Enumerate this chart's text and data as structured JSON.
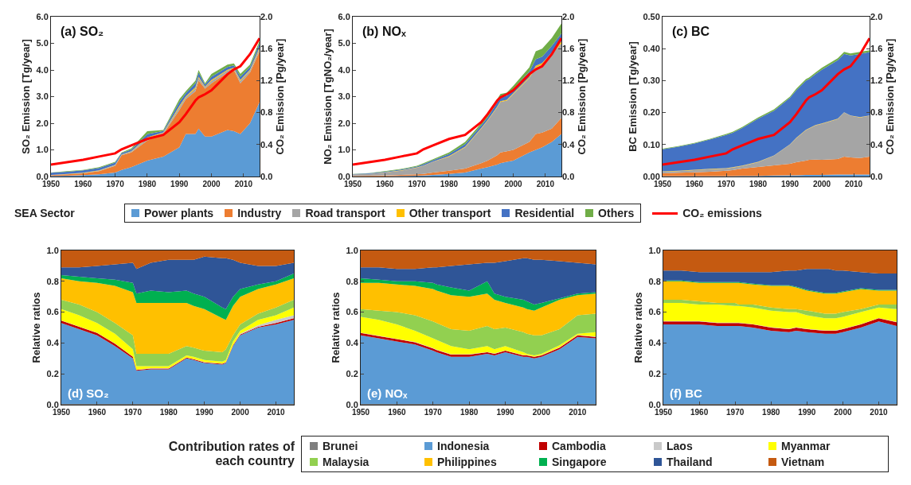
{
  "chart_data": [
    {
      "type": "area",
      "stacked": true,
      "title": "(a) SO₂",
      "ylabel": "SO₂ Emission [Tg/year]",
      "y2label": "CO₂ Emission [Pg/year]",
      "legend": "bottom",
      "legend_title": "SEA Sector",
      "x": [
        1950,
        1955,
        1960,
        1965,
        1970,
        1972,
        1975,
        1980,
        1985,
        1990,
        1992,
        1995,
        1996,
        1998,
        2000,
        2005,
        2007,
        2009,
        2012,
        2015
      ],
      "xlim": [
        1950,
        2015
      ],
      "xticks": [
        1950,
        1960,
        1970,
        1980,
        1990,
        2000,
        2010
      ],
      "ylim": [
        0,
        6
      ],
      "yticks": [
        {
          "value": 0,
          "label": "0.0"
        },
        {
          "value": 1,
          "label": "1.0"
        },
        {
          "value": 2,
          "label": "2.0"
        },
        {
          "value": 3,
          "label": "3.0"
        },
        {
          "value": 4,
          "label": "4.0"
        },
        {
          "value": 5,
          "label": "5.0"
        },
        {
          "value": 6,
          "label": "6.0"
        }
      ],
      "y2lim": [
        0,
        2
      ],
      "y2ticks": [
        {
          "value": 0,
          "label": "0.0"
        },
        {
          "value": 0.4,
          "label": "0.4"
        },
        {
          "value": 0.8,
          "label": "0.8"
        },
        {
          "value": 1.2,
          "label": "1.2"
        },
        {
          "value": 1.6,
          "label": "1.6"
        },
        {
          "value": 2,
          "label": "2.0"
        }
      ],
      "series": [
        {
          "name": "Power plants",
          "color": "#5b9bd5",
          "values": [
            0.02,
            0.03,
            0.05,
            0.08,
            0.15,
            0.25,
            0.35,
            0.6,
            0.75,
            1.1,
            1.6,
            1.6,
            1.8,
            1.5,
            1.5,
            1.75,
            1.7,
            1.6,
            2.0,
            2.8
          ]
        },
        {
          "name": "Industry",
          "color": "#ed7d31",
          "values": [
            0.03,
            0.05,
            0.07,
            0.12,
            0.25,
            0.55,
            0.55,
            0.75,
            0.85,
            1.4,
            1.3,
            1.6,
            1.8,
            1.8,
            2.0,
            2.15,
            2.3,
            1.9,
            1.9,
            1.9
          ]
        },
        {
          "name": "Road transport",
          "color": "#a5a5a5",
          "values": [
            0.01,
            0.01,
            0.01,
            0.02,
            0.03,
            0.02,
            0.03,
            0.08,
            0.04,
            0.1,
            0.08,
            0.1,
            0.1,
            0.05,
            0.09,
            0.08,
            0.06,
            0.09,
            0.08,
            0.1
          ]
        },
        {
          "name": "Other transport",
          "color": "#ffc000",
          "values": [
            0,
            0.01,
            0.01,
            0.01,
            0.01,
            0.01,
            0.02,
            0.04,
            0.02,
            0.05,
            0.03,
            0.05,
            0.05,
            0.02,
            0.04,
            0.03,
            0.03,
            0.04,
            0.03,
            0.05
          ]
        },
        {
          "name": "Residential",
          "color": "#4472c4",
          "values": [
            0.08,
            0.08,
            0.09,
            0.09,
            0.08,
            0.05,
            0.06,
            0.12,
            0.05,
            0.15,
            0.12,
            0.15,
            0.15,
            0.08,
            0.12,
            0.1,
            0.08,
            0.12,
            0.1,
            0.15
          ]
        },
        {
          "name": "Others",
          "color": "#70ad47",
          "values": [
            0.01,
            0.02,
            0.02,
            0.03,
            0.03,
            0.02,
            0.04,
            0.11,
            0.04,
            0.1,
            0.07,
            0.1,
            0.1,
            0.05,
            0.1,
            0.09,
            0.08,
            0.1,
            0.09,
            0.1
          ]
        },
        {
          "name": "CO₂ emissions",
          "type": "line",
          "axis": "y2",
          "color": "#ff0000",
          "values": [
            0.15,
            0.18,
            0.21,
            0.25,
            0.29,
            0.34,
            0.39,
            0.47,
            0.52,
            0.68,
            0.78,
            0.95,
            0.99,
            1.03,
            1.08,
            1.28,
            1.34,
            1.38,
            1.53,
            1.73
          ]
        }
      ]
    },
    {
      "type": "area",
      "stacked": true,
      "title": "(b) NOₓ",
      "ylabel": "NO₂ Emission [TgNO₂/year]",
      "y2label": "CO₂ Emission [Pg/year]",
      "x": [
        1950,
        1955,
        1960,
        1965,
        1970,
        1972,
        1975,
        1980,
        1985,
        1990,
        1992,
        1995,
        1996,
        1998,
        2000,
        2005,
        2007,
        2009,
        2012,
        2015
      ],
      "xlim": [
        1950,
        2015
      ],
      "xticks": [
        1950,
        1960,
        1970,
        1980,
        1990,
        2000,
        2010
      ],
      "ylim": [
        0,
        6
      ],
      "yticks": [
        {
          "value": 0,
          "label": "0.0"
        },
        {
          "value": 1,
          "label": "1.0"
        },
        {
          "value": 2,
          "label": "2.0"
        },
        {
          "value": 3,
          "label": "3.0"
        },
        {
          "value": 4,
          "label": "4.0"
        },
        {
          "value": 5,
          "label": "5.0"
        },
        {
          "value": 6,
          "label": "6.0"
        }
      ],
      "y2lim": [
        0,
        2
      ],
      "y2ticks": [
        {
          "value": 0,
          "label": "0.0"
        },
        {
          "value": 0.4,
          "label": "0.4"
        },
        {
          "value": 0.8,
          "label": "0.8"
        },
        {
          "value": 1.2,
          "label": "1.2"
        },
        {
          "value": 1.6,
          "label": "1.6"
        },
        {
          "value": 2,
          "label": "2.0"
        }
      ],
      "series": [
        {
          "color": "#5b9bd5",
          "values": [
            0.01,
            0.01,
            0.01,
            0.02,
            0.03,
            0.04,
            0.06,
            0.1,
            0.15,
            0.3,
            0.35,
            0.45,
            0.5,
            0.55,
            0.6,
            0.9,
            1.0,
            1.1,
            1.3,
            1.6
          ]
        },
        {
          "color": "#ed7d31",
          "values": [
            0.01,
            0.02,
            0.03,
            0.04,
            0.05,
            0.06,
            0.09,
            0.12,
            0.15,
            0.2,
            0.25,
            0.35,
            0.4,
            0.4,
            0.4,
            0.4,
            0.6,
            0.55,
            0.5,
            0.6
          ]
        },
        {
          "color": "#a5a5a5",
          "values": [
            0.06,
            0.07,
            0.11,
            0.16,
            0.25,
            0.3,
            0.4,
            0.53,
            0.8,
            1.3,
            1.5,
            1.8,
            1.9,
            1.9,
            2.1,
            2.4,
            2.5,
            2.55,
            2.8,
            2.8
          ]
        },
        {
          "color": "#ffc000",
          "values": [
            0,
            0,
            0.01,
            0.01,
            0.01,
            0.01,
            0.01,
            0.02,
            0.02,
            0.02,
            0.02,
            0.03,
            0.03,
            0.03,
            0.03,
            0.04,
            0.06,
            0.06,
            0.06,
            0.07
          ]
        },
        {
          "color": "#4472c4",
          "values": [
            0.01,
            0.02,
            0.02,
            0.03,
            0.03,
            0.05,
            0.05,
            0.07,
            0.1,
            0.1,
            0.1,
            0.15,
            0.15,
            0.15,
            0.15,
            0.2,
            0.24,
            0.24,
            0.24,
            0.3
          ]
        },
        {
          "color": "#70ad47",
          "values": [
            0.01,
            0.01,
            0.02,
            0.02,
            0.03,
            0.04,
            0.04,
            0.06,
            0.08,
            0.08,
            0.08,
            0.12,
            0.12,
            0.12,
            0.12,
            0.16,
            0.3,
            0.3,
            0.3,
            0.38
          ]
        },
        {
          "type": "line",
          "axis": "y2",
          "color": "#ff0000",
          "values": [
            0.15,
            0.18,
            0.21,
            0.25,
            0.29,
            0.34,
            0.39,
            0.47,
            0.52,
            0.68,
            0.78,
            0.95,
            0.99,
            1.03,
            1.08,
            1.28,
            1.34,
            1.38,
            1.53,
            1.73
          ]
        }
      ]
    },
    {
      "type": "area",
      "stacked": true,
      "title": "(c) BC",
      "ylabel": "BC Emission [Tg/year]",
      "y2label": "CO₂ Emission [Pg/year]",
      "x": [
        1950,
        1955,
        1960,
        1965,
        1970,
        1972,
        1975,
        1980,
        1985,
        1990,
        1992,
        1995,
        1996,
        1998,
        2000,
        2005,
        2007,
        2009,
        2012,
        2015
      ],
      "xlim": [
        1950,
        2015
      ],
      "xticks": [
        1950,
        1960,
        1970,
        1980,
        1990,
        2000,
        2010
      ],
      "ylim": [
        0,
        0.5
      ],
      "yticks": [
        {
          "value": 0,
          "label": "0.00"
        },
        {
          "value": 0.1,
          "label": "0.10"
        },
        {
          "value": 0.2,
          "label": "0.20"
        },
        {
          "value": 0.3,
          "label": "0.30"
        },
        {
          "value": 0.4,
          "label": "0.40"
        },
        {
          "value": 0.5,
          "label": "0.50"
        }
      ],
      "y2lim": [
        0,
        2
      ],
      "y2ticks": [
        {
          "value": 0,
          "label": "0.0"
        },
        {
          "value": 0.4,
          "label": "0.4"
        },
        {
          "value": 0.8,
          "label": "0.8"
        },
        {
          "value": 1.2,
          "label": "1.2"
        },
        {
          "value": 1.6,
          "label": "1.6"
        },
        {
          "value": 2,
          "label": "2.0"
        }
      ],
      "series": [
        {
          "color": "#5b9bd5",
          "values": [
            0.001,
            0.001,
            0.001,
            0.001,
            0.001,
            0.001,
            0.002,
            0.002,
            0.003,
            0.004,
            0.004,
            0.005,
            0.005,
            0.005,
            0.005,
            0.006,
            0.006,
            0.006,
            0.006,
            0.006
          ]
        },
        {
          "color": "#ed7d31",
          "values": [
            0.009,
            0.011,
            0.012,
            0.014,
            0.017,
            0.019,
            0.023,
            0.028,
            0.032,
            0.036,
            0.041,
            0.045,
            0.047,
            0.048,
            0.047,
            0.049,
            0.056,
            0.054,
            0.052,
            0.056
          ]
        },
        {
          "color": "#a5a5a5",
          "values": [
            0.005,
            0.005,
            0.007,
            0.008,
            0.007,
            0.008,
            0.008,
            0.015,
            0.03,
            0.06,
            0.075,
            0.095,
            0.098,
            0.107,
            0.113,
            0.125,
            0.138,
            0.13,
            0.127,
            0.128
          ]
        },
        {
          "color": "#ffc000",
          "values": [
            0.001,
            0.001,
            0.001,
            0.001,
            0.001,
            0.001,
            0.001,
            0.001,
            0.001,
            0.001,
            0.001,
            0.001,
            0.001,
            0.001,
            0.001,
            0.001,
            0.001,
            0.001,
            0.001,
            0.001
          ]
        },
        {
          "color": "#4472c4",
          "values": [
            0.069,
            0.075,
            0.082,
            0.092,
            0.104,
            0.108,
            0.118,
            0.135,
            0.14,
            0.145,
            0.149,
            0.154,
            0.154,
            0.159,
            0.168,
            0.183,
            0.183,
            0.188,
            0.198,
            0.198
          ]
        },
        {
          "color": "#70ad47",
          "values": [
            0.002,
            0.002,
            0.002,
            0.002,
            0.003,
            0.003,
            0.003,
            0.004,
            0.004,
            0.004,
            0.005,
            0.005,
            0.005,
            0.005,
            0.006,
            0.006,
            0.006,
            0.006,
            0.006,
            0.006
          ]
        },
        {
          "type": "line",
          "axis": "y2",
          "color": "#ff0000",
          "values": [
            0.15,
            0.18,
            0.21,
            0.25,
            0.29,
            0.34,
            0.39,
            0.47,
            0.52,
            0.68,
            0.78,
            0.95,
            0.99,
            1.03,
            1.08,
            1.28,
            1.34,
            1.38,
            1.53,
            1.73
          ]
        }
      ]
    },
    {
      "type": "area",
      "stacked": true,
      "title": "(d) SO₂",
      "ylabel": "Relative ratios",
      "legend": "bottom",
      "legend_title": "Contribution rates of each country",
      "x": [
        1950,
        1955,
        1960,
        1965,
        1970,
        1971,
        1975,
        1980,
        1985,
        1987,
        1990,
        1995,
        1996,
        1998,
        2000,
        2005,
        2010,
        2015
      ],
      "xlim": [
        1950,
        2015
      ],
      "xticks": [
        1950,
        1960,
        1970,
        1980,
        1990,
        2000,
        2010
      ],
      "ylim": [
        0,
        1
      ],
      "yticks": [
        {
          "value": 0,
          "label": "0.0"
        },
        {
          "value": 0.2,
          "label": "0.2"
        },
        {
          "value": 0.4,
          "label": "0.4"
        },
        {
          "value": 0.6,
          "label": "0.6"
        },
        {
          "value": 0.8,
          "label": "0.8"
        },
        {
          "value": 1,
          "label": "1.0"
        }
      ],
      "series": [
        {
          "name": "Brunei",
          "color": "#7f7f7f",
          "values": [
            0.005,
            0.005,
            0.005,
            0.005,
            0.005,
            0.005,
            0.005,
            0.005,
            0.005,
            0.005,
            0.005,
            0.005,
            0.005,
            0.005,
            0.005,
            0.005,
            0.005,
            0.005
          ]
        },
        {
          "name": "Indonesia",
          "color": "#5b9bd5",
          "values": [
            0.525,
            0.485,
            0.445,
            0.375,
            0.295,
            0.215,
            0.225,
            0.225,
            0.295,
            0.285,
            0.265,
            0.255,
            0.265,
            0.375,
            0.445,
            0.495,
            0.515,
            0.545
          ]
        },
        {
          "name": "Cambodia",
          "color": "#c00000",
          "values": [
            0.015,
            0.015,
            0.015,
            0.015,
            0.01,
            0.005,
            0.005,
            0.005,
            0.005,
            0.005,
            0.005,
            0.005,
            0.005,
            0.005,
            0.005,
            0.005,
            0.01,
            0.01
          ]
        },
        {
          "name": "Laos",
          "color": "#c9c9c9",
          "values": [
            0.002,
            0.002,
            0.002,
            0.002,
            0.002,
            0.002,
            0.002,
            0.002,
            0.002,
            0.002,
            0.002,
            0.002,
            0.002,
            0.002,
            0.005,
            0.01,
            0.02,
            0.02
          ]
        },
        {
          "name": "Myanmar",
          "color": "#ffff00",
          "values": [
            0.073,
            0.073,
            0.063,
            0.063,
            0.048,
            0.023,
            0.013,
            0.013,
            0.013,
            0.013,
            0.013,
            0.013,
            0.013,
            0.023,
            0.02,
            0.035,
            0.03,
            0.05
          ]
        },
        {
          "name": "Malaysia",
          "color": "#92d050",
          "values": [
            0.06,
            0.07,
            0.07,
            0.07,
            0.09,
            0.08,
            0.08,
            0.08,
            0.06,
            0.06,
            0.06,
            0.06,
            0.07,
            0.04,
            0.04,
            0.04,
            0.05,
            0.05
          ]
        },
        {
          "name": "Philippines",
          "color": "#ffc000",
          "values": [
            0.14,
            0.15,
            0.19,
            0.24,
            0.28,
            0.33,
            0.33,
            0.33,
            0.28,
            0.27,
            0.27,
            0.22,
            0.19,
            0.19,
            0.18,
            0.16,
            0.15,
            0.14
          ]
        },
        {
          "name": "Singapore",
          "color": "#00b050",
          "values": [
            0.02,
            0.03,
            0.03,
            0.04,
            0.06,
            0.06,
            0.08,
            0.07,
            0.08,
            0.08,
            0.08,
            0.07,
            0.07,
            0.06,
            0.05,
            0.03,
            0.02,
            0.03
          ]
        },
        {
          "name": "Thailand",
          "color": "#2f5597",
          "values": [
            0.05,
            0.06,
            0.08,
            0.1,
            0.13,
            0.16,
            0.18,
            0.21,
            0.2,
            0.22,
            0.26,
            0.32,
            0.33,
            0.24,
            0.17,
            0.12,
            0.1,
            0.07
          ]
        },
        {
          "name": "Vietnam",
          "color": "#c55a11",
          "values": [
            0.11,
            0.11,
            0.1,
            0.09,
            0.08,
            0.12,
            0.08,
            0.06,
            0.06,
            0.06,
            0.04,
            0.05,
            0.05,
            0.06,
            0.08,
            0.1,
            0.1,
            0.08
          ]
        }
      ]
    },
    {
      "type": "area",
      "stacked": true,
      "title": "(e) NOₓ",
      "ylabel": "Relative ratios",
      "x": [
        1950,
        1955,
        1960,
        1965,
        1970,
        1971,
        1975,
        1980,
        1985,
        1987,
        1990,
        1995,
        1996,
        1998,
        2000,
        2005,
        2010,
        2015
      ],
      "xlim": [
        1950,
        2015
      ],
      "xticks": [
        1950,
        1960,
        1970,
        1980,
        1990,
        2000,
        2010
      ],
      "ylim": [
        0,
        1
      ],
      "yticks": [
        {
          "value": 0,
          "label": "0.0"
        },
        {
          "value": 0.2,
          "label": "0.2"
        },
        {
          "value": 0.4,
          "label": "0.4"
        },
        {
          "value": 0.6,
          "label": "0.6"
        },
        {
          "value": 0.8,
          "label": "0.8"
        },
        {
          "value": 1,
          "label": "1.0"
        }
      ],
      "series": [
        {
          "color": "#7f7f7f",
          "values": [
            0.005,
            0.005,
            0.005,
            0.005,
            0.005,
            0.005,
            0.005,
            0.005,
            0.005,
            0.005,
            0.005,
            0.005,
            0.005,
            0.005,
            0.005,
            0.005,
            0.005,
            0.005
          ]
        },
        {
          "color": "#5b9bd5",
          "values": [
            0.445,
            0.425,
            0.405,
            0.385,
            0.345,
            0.335,
            0.305,
            0.305,
            0.325,
            0.315,
            0.335,
            0.305,
            0.305,
            0.295,
            0.305,
            0.355,
            0.435,
            0.425
          ]
        },
        {
          "color": "#c00000",
          "values": [
            0.015,
            0.015,
            0.015,
            0.015,
            0.015,
            0.015,
            0.015,
            0.015,
            0.01,
            0.01,
            0.01,
            0.01,
            0.01,
            0.01,
            0.01,
            0.01,
            0.01,
            0.01
          ]
        },
        {
          "color": "#c9c9c9",
          "values": [
            0.002,
            0.002,
            0.002,
            0.002,
            0.002,
            0.002,
            0.002,
            0.002,
            0.002,
            0.002,
            0.002,
            0.002,
            0.002,
            0.002,
            0.002,
            0.002,
            0.002,
            0.002
          ]
        },
        {
          "color": "#ffff00",
          "values": [
            0.103,
            0.103,
            0.093,
            0.073,
            0.063,
            0.063,
            0.053,
            0.033,
            0.038,
            0.028,
            0.028,
            0.018,
            0.008,
            0.008,
            0.008,
            0.013,
            0.008,
            0.028
          ]
        },
        {
          "color": "#92d050",
          "values": [
            0.05,
            0.06,
            0.08,
            0.1,
            0.11,
            0.11,
            0.11,
            0.12,
            0.13,
            0.13,
            0.12,
            0.13,
            0.13,
            0.13,
            0.12,
            0.105,
            0.12,
            0.12
          ]
        },
        {
          "color": "#ffc000",
          "values": [
            0.17,
            0.18,
            0.18,
            0.19,
            0.21,
            0.21,
            0.22,
            0.22,
            0.21,
            0.19,
            0.16,
            0.16,
            0.16,
            0.16,
            0.18,
            0.19,
            0.13,
            0.13
          ]
        },
        {
          "color": "#00b050",
          "values": [
            0.03,
            0.02,
            0.02,
            0.03,
            0.04,
            0.04,
            0.05,
            0.04,
            0.08,
            0.04,
            0.04,
            0.05,
            0.05,
            0.04,
            0.03,
            0.01,
            0.01,
            0.01
          ]
        },
        {
          "color": "#2f5597",
          "values": [
            0.07,
            0.08,
            0.08,
            0.08,
            0.1,
            0.11,
            0.14,
            0.17,
            0.12,
            0.2,
            0.23,
            0.27,
            0.28,
            0.29,
            0.28,
            0.24,
            0.2,
            0.18
          ]
        },
        {
          "color": "#c55a11",
          "values": [
            0.11,
            0.11,
            0.12,
            0.12,
            0.11,
            0.11,
            0.1,
            0.09,
            0.08,
            0.08,
            0.07,
            0.05,
            0.05,
            0.06,
            0.06,
            0.07,
            0.08,
            0.09
          ]
        }
      ]
    },
    {
      "type": "area",
      "stacked": true,
      "title": "(f) BC",
      "ylabel": "Relative ratios",
      "x": [
        1950,
        1955,
        1960,
        1965,
        1970,
        1971,
        1975,
        1980,
        1985,
        1987,
        1990,
        1995,
        1996,
        1998,
        2000,
        2005,
        2010,
        2015
      ],
      "xlim": [
        1950,
        2015
      ],
      "xticks": [
        1950,
        1960,
        1970,
        1980,
        1990,
        2000,
        2010
      ],
      "ylim": [
        0,
        1
      ],
      "yticks": [
        {
          "value": 0,
          "label": "0.0"
        },
        {
          "value": 0.2,
          "label": "0.2"
        },
        {
          "value": 0.4,
          "label": "0.4"
        },
        {
          "value": 0.6,
          "label": "0.6"
        },
        {
          "value": 0.8,
          "label": "0.8"
        },
        {
          "value": 1,
          "label": "1.0"
        }
      ],
      "series": [
        {
          "color": "#7f7f7f",
          "values": [
            0.005,
            0.005,
            0.005,
            0.005,
            0.005,
            0.005,
            0.005,
            0.005,
            0.005,
            0.005,
            0.005,
            0.005,
            0.005,
            0.005,
            0.005,
            0.005,
            0.005,
            0.005
          ]
        },
        {
          "color": "#5b9bd5",
          "values": [
            0.515,
            0.515,
            0.515,
            0.505,
            0.505,
            0.505,
            0.495,
            0.475,
            0.465,
            0.475,
            0.465,
            0.455,
            0.455,
            0.455,
            0.465,
            0.495,
            0.535,
            0.505
          ]
        },
        {
          "color": "#c00000",
          "values": [
            0.02,
            0.02,
            0.02,
            0.02,
            0.02,
            0.02,
            0.02,
            0.02,
            0.02,
            0.02,
            0.02,
            0.02,
            0.02,
            0.02,
            0.02,
            0.02,
            0.02,
            0.025
          ]
        },
        {
          "color": "#c9c9c9",
          "values": [
            0.002,
            0.002,
            0.002,
            0.002,
            0.002,
            0.002,
            0.002,
            0.002,
            0.002,
            0.002,
            0.002,
            0.002,
            0.002,
            0.002,
            0.002,
            0.002,
            0.002,
            0.002
          ]
        },
        {
          "color": "#ffff00",
          "values": [
            0.118,
            0.118,
            0.108,
            0.118,
            0.108,
            0.108,
            0.108,
            0.108,
            0.108,
            0.098,
            0.088,
            0.078,
            0.078,
            0.078,
            0.078,
            0.078,
            0.068,
            0.083
          ]
        },
        {
          "color": "#92d050",
          "values": [
            0.02,
            0.02,
            0.02,
            0.01,
            0.02,
            0.01,
            0.02,
            0.02,
            0.02,
            0.02,
            0.03,
            0.03,
            0.03,
            0.03,
            0.03,
            0.02,
            0.02,
            0.03
          ]
        },
        {
          "color": "#ffc000",
          "values": [
            0.12,
            0.12,
            0.12,
            0.13,
            0.13,
            0.14,
            0.13,
            0.14,
            0.15,
            0.14,
            0.13,
            0.13,
            0.13,
            0.13,
            0.13,
            0.13,
            0.09,
            0.09
          ]
        },
        {
          "color": "#00b050",
          "values": [
            0.005,
            0.005,
            0.005,
            0.005,
            0.005,
            0.005,
            0.005,
            0.005,
            0.005,
            0.005,
            0.005,
            0.005,
            0.005,
            0.005,
            0.005,
            0.005,
            0.005,
            0.005
          ]
        },
        {
          "color": "#2f5597",
          "values": [
            0.065,
            0.065,
            0.065,
            0.065,
            0.065,
            0.065,
            0.075,
            0.085,
            0.095,
            0.105,
            0.135,
            0.155,
            0.155,
            0.145,
            0.135,
            0.105,
            0.105,
            0.105
          ]
        },
        {
          "color": "#c55a11",
          "values": [
            0.13,
            0.13,
            0.14,
            0.14,
            0.14,
            0.14,
            0.14,
            0.14,
            0.13,
            0.13,
            0.12,
            0.12,
            0.12,
            0.13,
            0.13,
            0.14,
            0.15,
            0.15
          ]
        }
      ]
    }
  ]
}
